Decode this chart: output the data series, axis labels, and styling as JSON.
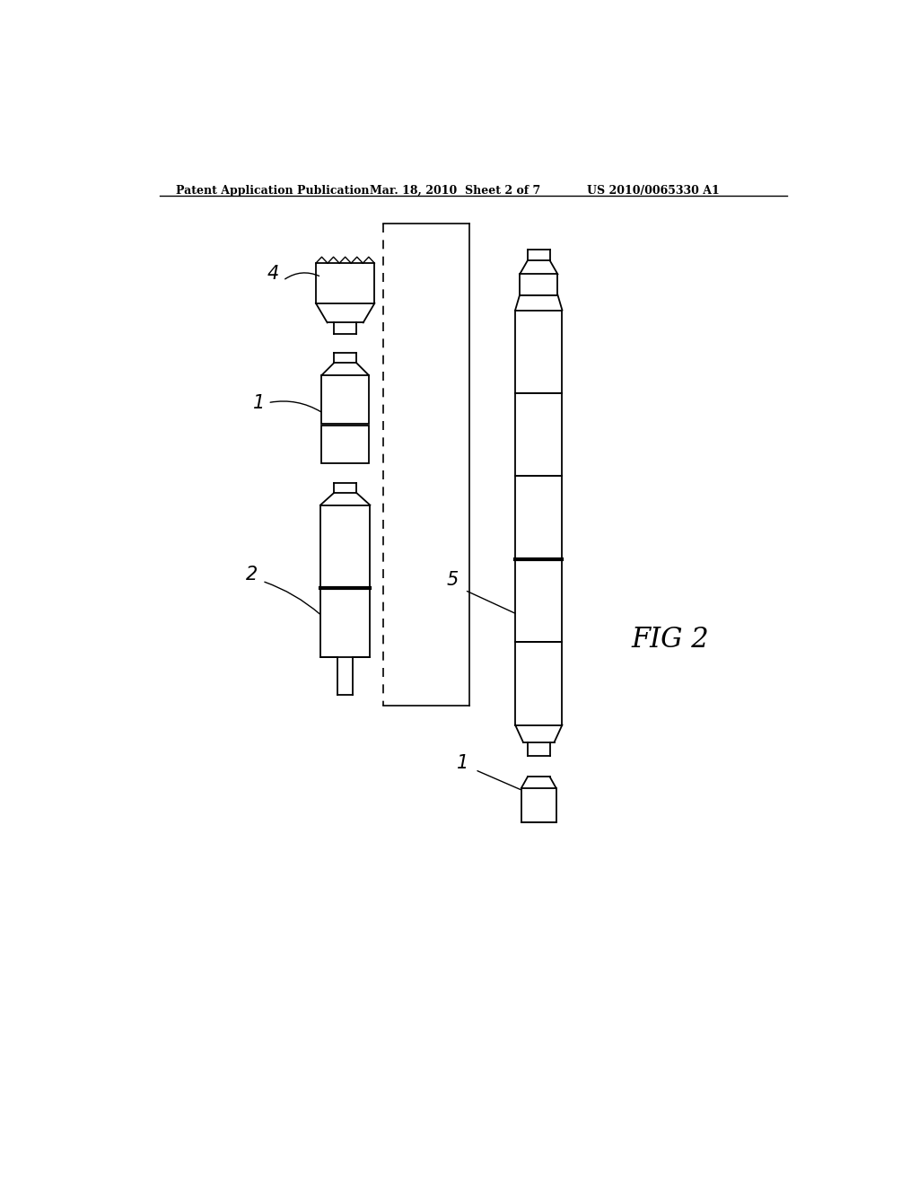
{
  "bg_color": "#ffffff",
  "header_left": "Patent Application Publication",
  "header_mid": "Mar. 18, 2010  Sheet 2 of 7",
  "header_right": "US 2010/0065330 A1",
  "fig_label": "FIG 2",
  "label_4": "4",
  "label_1": "1",
  "label_2": "2",
  "label_5": "5",
  "label_1b": "1"
}
